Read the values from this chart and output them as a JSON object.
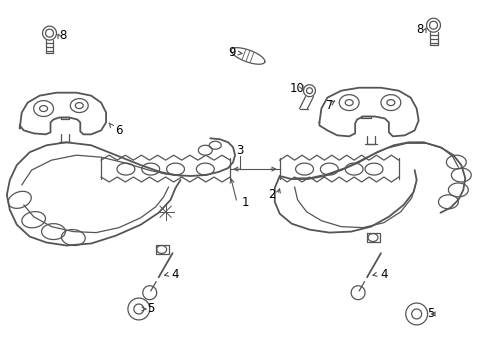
{
  "background": "#ffffff",
  "fig_width": 4.9,
  "fig_height": 3.6,
  "dpi": 100,
  "line_color": "#555555",
  "label_color": "#000000",
  "label_fontsize": 8.5
}
